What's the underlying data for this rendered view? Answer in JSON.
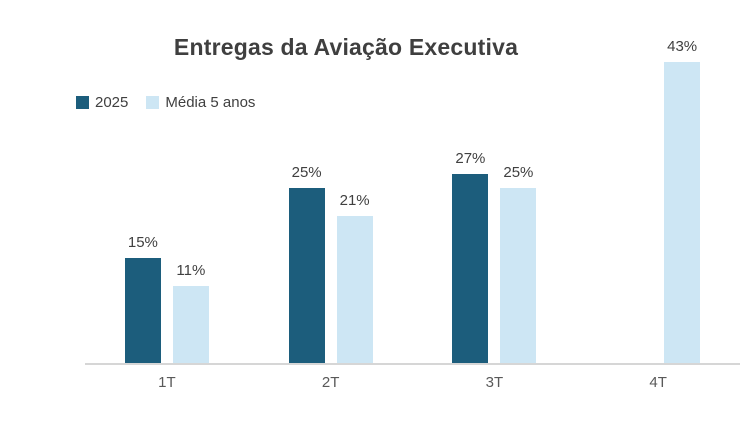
{
  "chart_data": {
    "type": "bar",
    "title": "Entregas da Aviação Executiva",
    "categories": [
      "1T",
      "2T",
      "3T",
      "4T"
    ],
    "series": [
      {
        "name": "2025",
        "color": "#1c5d7c",
        "values": [
          15,
          25,
          27,
          null
        ]
      },
      {
        "name": "Média 5 anos",
        "color": "#cde6f4",
        "values": [
          11,
          21,
          25,
          43
        ]
      }
    ],
    "value_suffix": "%",
    "data_labels": {
      "2025": [
        "15%",
        "25%",
        "27%",
        null
      ],
      "Média 5 anos": [
        "11%",
        "21%",
        "25%",
        "43%"
      ]
    },
    "ylim": [
      0,
      45
    ],
    "grid": false,
    "legend_position": "top-left",
    "axis_line_color": "#d6d6d6",
    "label_color": "#404040",
    "axis_label_color": "#595959",
    "title_color": "#3f3f3f"
  }
}
